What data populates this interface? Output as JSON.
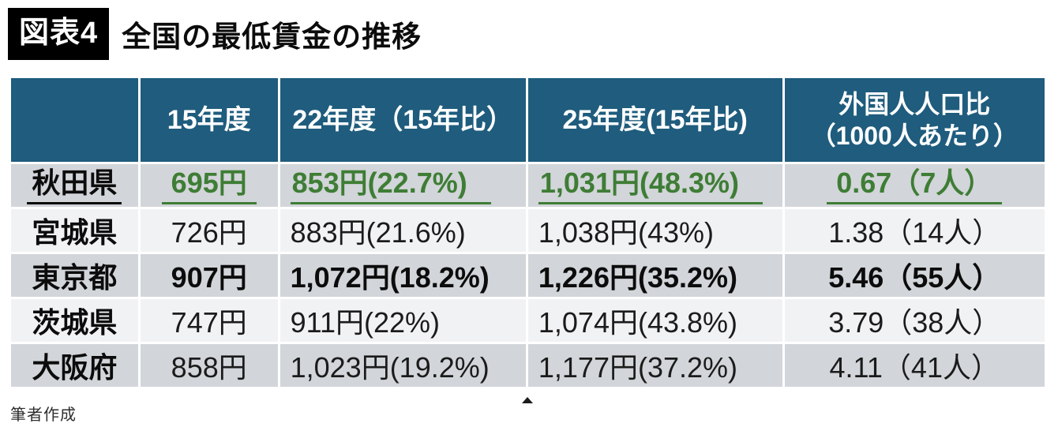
{
  "figure": {
    "tag": "図表4",
    "title": "全国の最低賃金の推移",
    "source": "筆者作成"
  },
  "colors": {
    "header_bg": "#1F5C7D",
    "row_gray": "#D2D5D9",
    "row_light": "#F1F2F4",
    "accent_green": "#3E7D35",
    "tag_bg": "#000000"
  },
  "table": {
    "columns": [
      {
        "key": "pref",
        "label": ""
      },
      {
        "key": "y15",
        "label": "15年度"
      },
      {
        "key": "y22",
        "label": "22年度（15年比）"
      },
      {
        "key": "y25",
        "label": "25年度(15年比)"
      },
      {
        "key": "foreign",
        "label_line1": "外国人人口比",
        "label_line2": "（1000人あたり）"
      }
    ],
    "rows": [
      {
        "pref": "秋田県",
        "y15": "695円",
        "y22": "853円(22.7%)",
        "y25": "1,031円(48.3%)",
        "foreign": "0.67（7人）",
        "shade": "gray",
        "highlight": true,
        "bold": true
      },
      {
        "pref": "宮城県",
        "y15": "726円",
        "y22": "883円(21.6%)",
        "y25": "1,038円(43%)",
        "foreign": "1.38（14人）",
        "shade": "light",
        "highlight": false,
        "bold": false
      },
      {
        "pref": "東京都",
        "y15": "907円",
        "y22": "1,072円(18.2%)",
        "y25": "1,226円(35.2%)",
        "foreign": "5.46（55人）",
        "shade": "gray",
        "highlight": false,
        "bold": true
      },
      {
        "pref": "茨城県",
        "y15": "747円",
        "y22": "911円(22%)",
        "y25": "1,074円(43.8%)",
        "foreign": "3.79（38人）",
        "shade": "light",
        "highlight": false,
        "bold": false
      },
      {
        "pref": "大阪府",
        "y15": "858円",
        "y22": "1,023円(19.2%)",
        "y25": "1,177円(37.2%)",
        "foreign": "4.11（41人）",
        "shade": "gray",
        "highlight": false,
        "bold": false
      }
    ]
  },
  "chart_data": {
    "type": "table",
    "title": "全国の最低賃金の推移",
    "columns": [
      "",
      "15年度",
      "22年度（15年比）",
      "25年度(15年比)",
      "外国人人口比（1000人あたり）"
    ],
    "rows": [
      [
        "秋田県",
        "695円",
        "853円(22.7%)",
        "1,031円(48.3%)",
        "0.67（7人）"
      ],
      [
        "宮城県",
        "726円",
        "883円(21.6%)",
        "1,038円(43%)",
        "1.38（14人）"
      ],
      [
        "東京都",
        "907円",
        "1,072円(18.2%)",
        "1,226円(35.2%)",
        "5.46（55人）"
      ],
      [
        "茨城県",
        "747円",
        "911円(22%)",
        "1,074円(43.8%)",
        "3.79（38人）"
      ],
      [
        "大阪府",
        "858円",
        "1,023円(19.2%)",
        "1,177円(37.2%)",
        "4.11（41人）"
      ]
    ]
  }
}
